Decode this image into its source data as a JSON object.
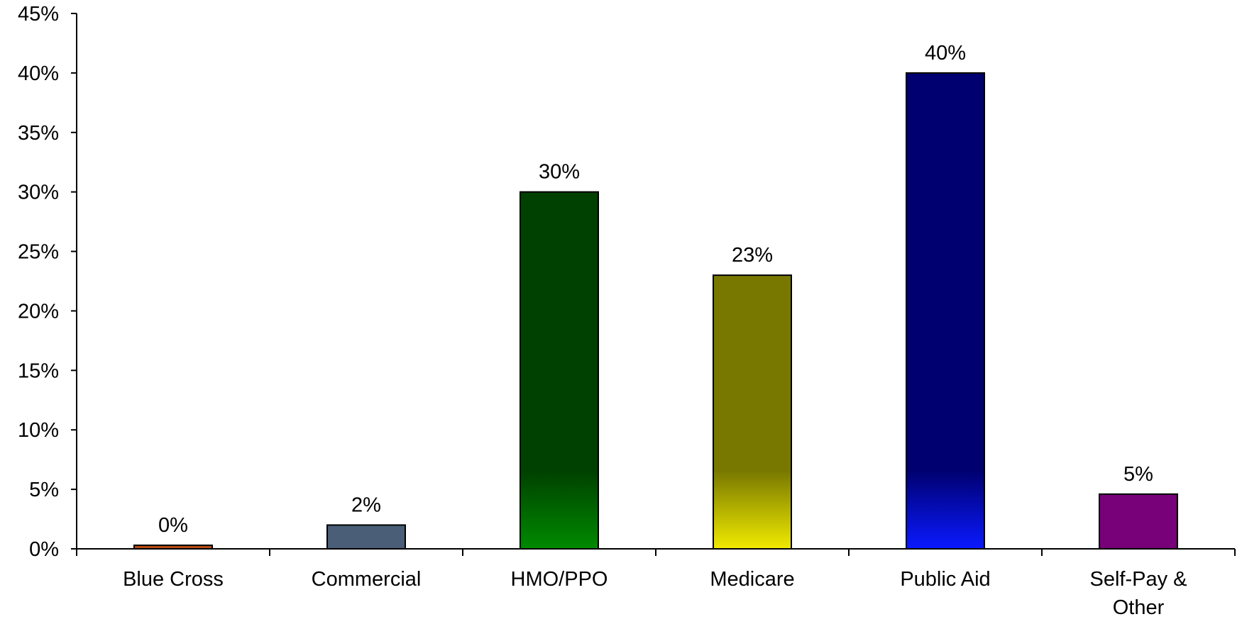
{
  "chart_data": {
    "type": "bar",
    "title": "",
    "xlabel": "",
    "ylabel": "",
    "categories": [
      {
        "label": [
          "Blue Cross"
        ],
        "value": 0.3,
        "display": "0%"
      },
      {
        "label": [
          "Commercial"
        ],
        "value": 2,
        "display": "2%"
      },
      {
        "label": [
          "HMO/PPO"
        ],
        "value": 30,
        "display": "30%"
      },
      {
        "label": [
          "Medicare"
        ],
        "value": 23,
        "display": "23%"
      },
      {
        "label": [
          "Public Aid"
        ],
        "value": 40,
        "display": "40%"
      },
      {
        "label": [
          "Self-Pay &",
          "Other"
        ],
        "value": 4.6,
        "display": "5%"
      }
    ],
    "ylim": [
      0,
      45
    ],
    "yticks": [
      {
        "value": 0,
        "label": "0%"
      },
      {
        "value": 5,
        "label": "5%"
      },
      {
        "value": 10,
        "label": "10%"
      },
      {
        "value": 15,
        "label": "15%"
      },
      {
        "value": 20,
        "label": "20%"
      },
      {
        "value": 25,
        "label": "25%"
      },
      {
        "value": 30,
        "label": "30%"
      },
      {
        "value": 35,
        "label": "35%"
      },
      {
        "value": 40,
        "label": "40%"
      },
      {
        "value": 45,
        "label": "45%"
      }
    ],
    "grid": false,
    "legend": "none",
    "bar_styles": [
      {
        "top": "#b84a10",
        "bottom": "#b84a10",
        "solid": true
      },
      {
        "top": "#4a5e78",
        "bottom": "#4a5e78",
        "solid": true
      },
      {
        "top": "#004000",
        "bottom": "#008a00",
        "solid": false
      },
      {
        "top": "#787800",
        "bottom": "#f0ea00",
        "solid": false
      },
      {
        "top": "#000070",
        "bottom": "#0a1aff",
        "solid": false
      },
      {
        "top": "#780078",
        "bottom": "#780078",
        "solid": true
      }
    ],
    "axis_color": "#000000"
  }
}
